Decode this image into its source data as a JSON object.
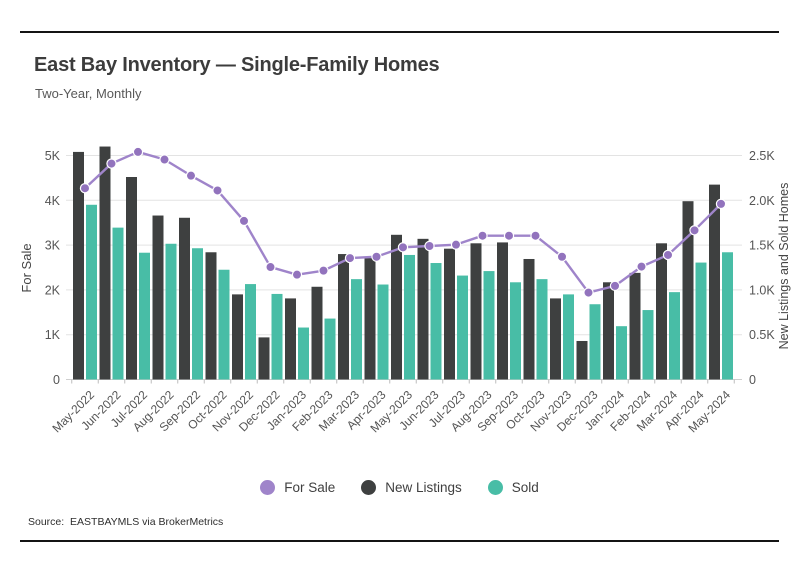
{
  "header": {
    "title": "East Bay Inventory — Single-Family Homes",
    "subtitle": "Two-Year, Monthly"
  },
  "source": "Source:  EASTBAYMLS via BrokerMetrics",
  "chart_data": {
    "type": "bar",
    "subtype": "grouped bars with overlaid line, dual axis",
    "categories": [
      "May-2022",
      "Jun-2022",
      "Jul-2022",
      "Aug-2022",
      "Sep-2022",
      "Oct-2022",
      "Nov-2022",
      "Dec-2022",
      "Jan-2023",
      "Feb-2023",
      "Mar-2023",
      "Apr-2023",
      "May-2023",
      "Jun-2023",
      "Jul-2023",
      "Aug-2023",
      "Sep-2023",
      "Oct-2023",
      "Nov-2023",
      "Dec-2023",
      "Jan-2024",
      "Feb-2024",
      "Mar-2024",
      "Apr-2024",
      "May-2024"
    ],
    "series": [
      {
        "name": "For Sale",
        "type": "line",
        "axis": "left",
        "color": "#9f84ca",
        "marker_color": "#9273bd",
        "values": [
          4270,
          4820,
          5080,
          4910,
          4550,
          4220,
          3540,
          2510,
          2340,
          2430,
          2710,
          2740,
          2950,
          2980,
          3010,
          3210,
          3210,
          3210,
          2740,
          1940,
          2090,
          2520,
          2780,
          3330,
          3920
        ]
      },
      {
        "name": "New Listings",
        "type": "bar",
        "axis": "right",
        "color": "#3e4040",
        "values": [
          2540,
          2600,
          2260,
          1830,
          1805,
          1420,
          950,
          470,
          905,
          1035,
          1400,
          1365,
          1615,
          1570,
          1460,
          1520,
          1530,
          1345,
          905,
          430,
          1085,
          1190,
          1520,
          1990,
          2175
        ]
      },
      {
        "name": "Sold",
        "type": "bar",
        "axis": "right",
        "color": "#48bda6",
        "values": [
          1950,
          1695,
          1415,
          1515,
          1465,
          1225,
          1065,
          955,
          580,
          680,
          1120,
          1060,
          1390,
          1300,
          1160,
          1210,
          1085,
          1120,
          950,
          840,
          595,
          775,
          975,
          1305,
          1420
        ]
      }
    ],
    "left_axis": {
      "title": "For Sale",
      "ticks": [
        "0",
        "1K",
        "2K",
        "3K",
        "4K",
        "5K"
      ],
      "range": [
        0,
        5000
      ]
    },
    "right_axis": {
      "title": "New Listings and Sold Homes",
      "ticks": [
        "0",
        "0.5K",
        "1.0K",
        "1.5K",
        "2.0K",
        "2.5K"
      ],
      "range": [
        0,
        2500
      ]
    },
    "grid": true,
    "legend_position": "bottom"
  }
}
